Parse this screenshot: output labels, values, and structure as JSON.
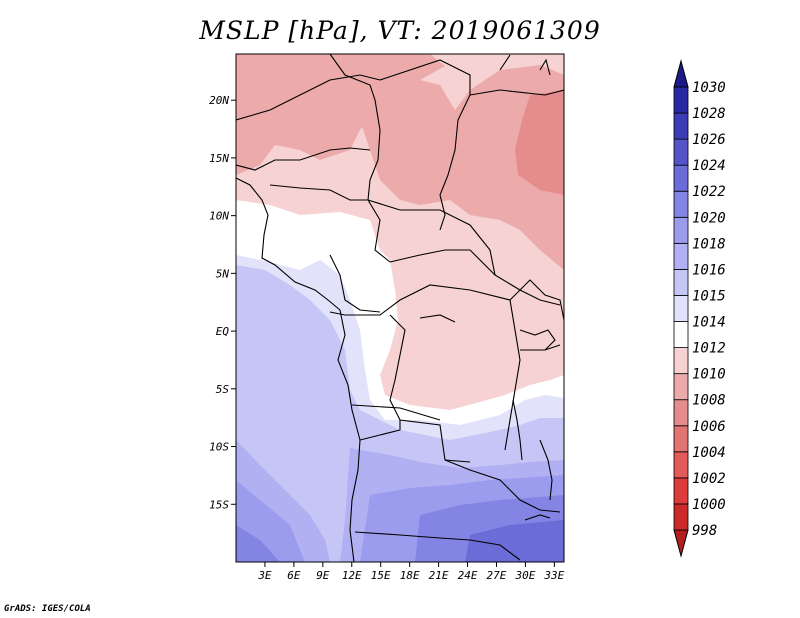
{
  "title": "MSLP [hPa], VT: 2019061309",
  "credit": "GrADS: IGES/COLA",
  "map": {
    "region": "Central Africa",
    "variable": "Mean sea level pressure",
    "units": "hPa",
    "lon_range": [
      0,
      34
    ],
    "lat_range": [
      -20,
      24
    ],
    "lon_ticks": [
      3,
      6,
      9,
      12,
      15,
      18,
      21,
      24,
      27,
      30,
      33
    ],
    "lon_tick_labels": [
      "3E",
      "6E",
      "9E",
      "12E",
      "15E",
      "18E",
      "21E",
      "24E",
      "27E",
      "30E",
      "33E"
    ],
    "lat_ticks": [
      20,
      15,
      10,
      5,
      0,
      -5,
      -10,
      -15
    ],
    "lat_tick_labels": [
      "20N",
      "15N",
      "10N",
      "5N",
      "EQ",
      "5S",
      "10S",
      "15S"
    ]
  },
  "colorbar": {
    "levels": [
      "998",
      "1000",
      "1002",
      "1004",
      "1006",
      "1008",
      "1010",
      "1012",
      "1014",
      "1015",
      "1016",
      "1018",
      "1020",
      "1022",
      "1024",
      "1026",
      "1028",
      "1030"
    ],
    "colors": [
      "#b31e1e",
      "#cc2a2a",
      "#dc3c3c",
      "#e25a5a",
      "#e27474",
      "#e58d8d",
      "#ecaaaa",
      "#f6d2d2",
      "#ffffff",
      "#e2e2fa",
      "#c6c6f6",
      "#b0b0f2",
      "#9c9cee",
      "#8484e4",
      "#6c6cd8",
      "#5454c8",
      "#3c3cb8",
      "#2828a2",
      "#1a1a8a"
    ]
  }
}
